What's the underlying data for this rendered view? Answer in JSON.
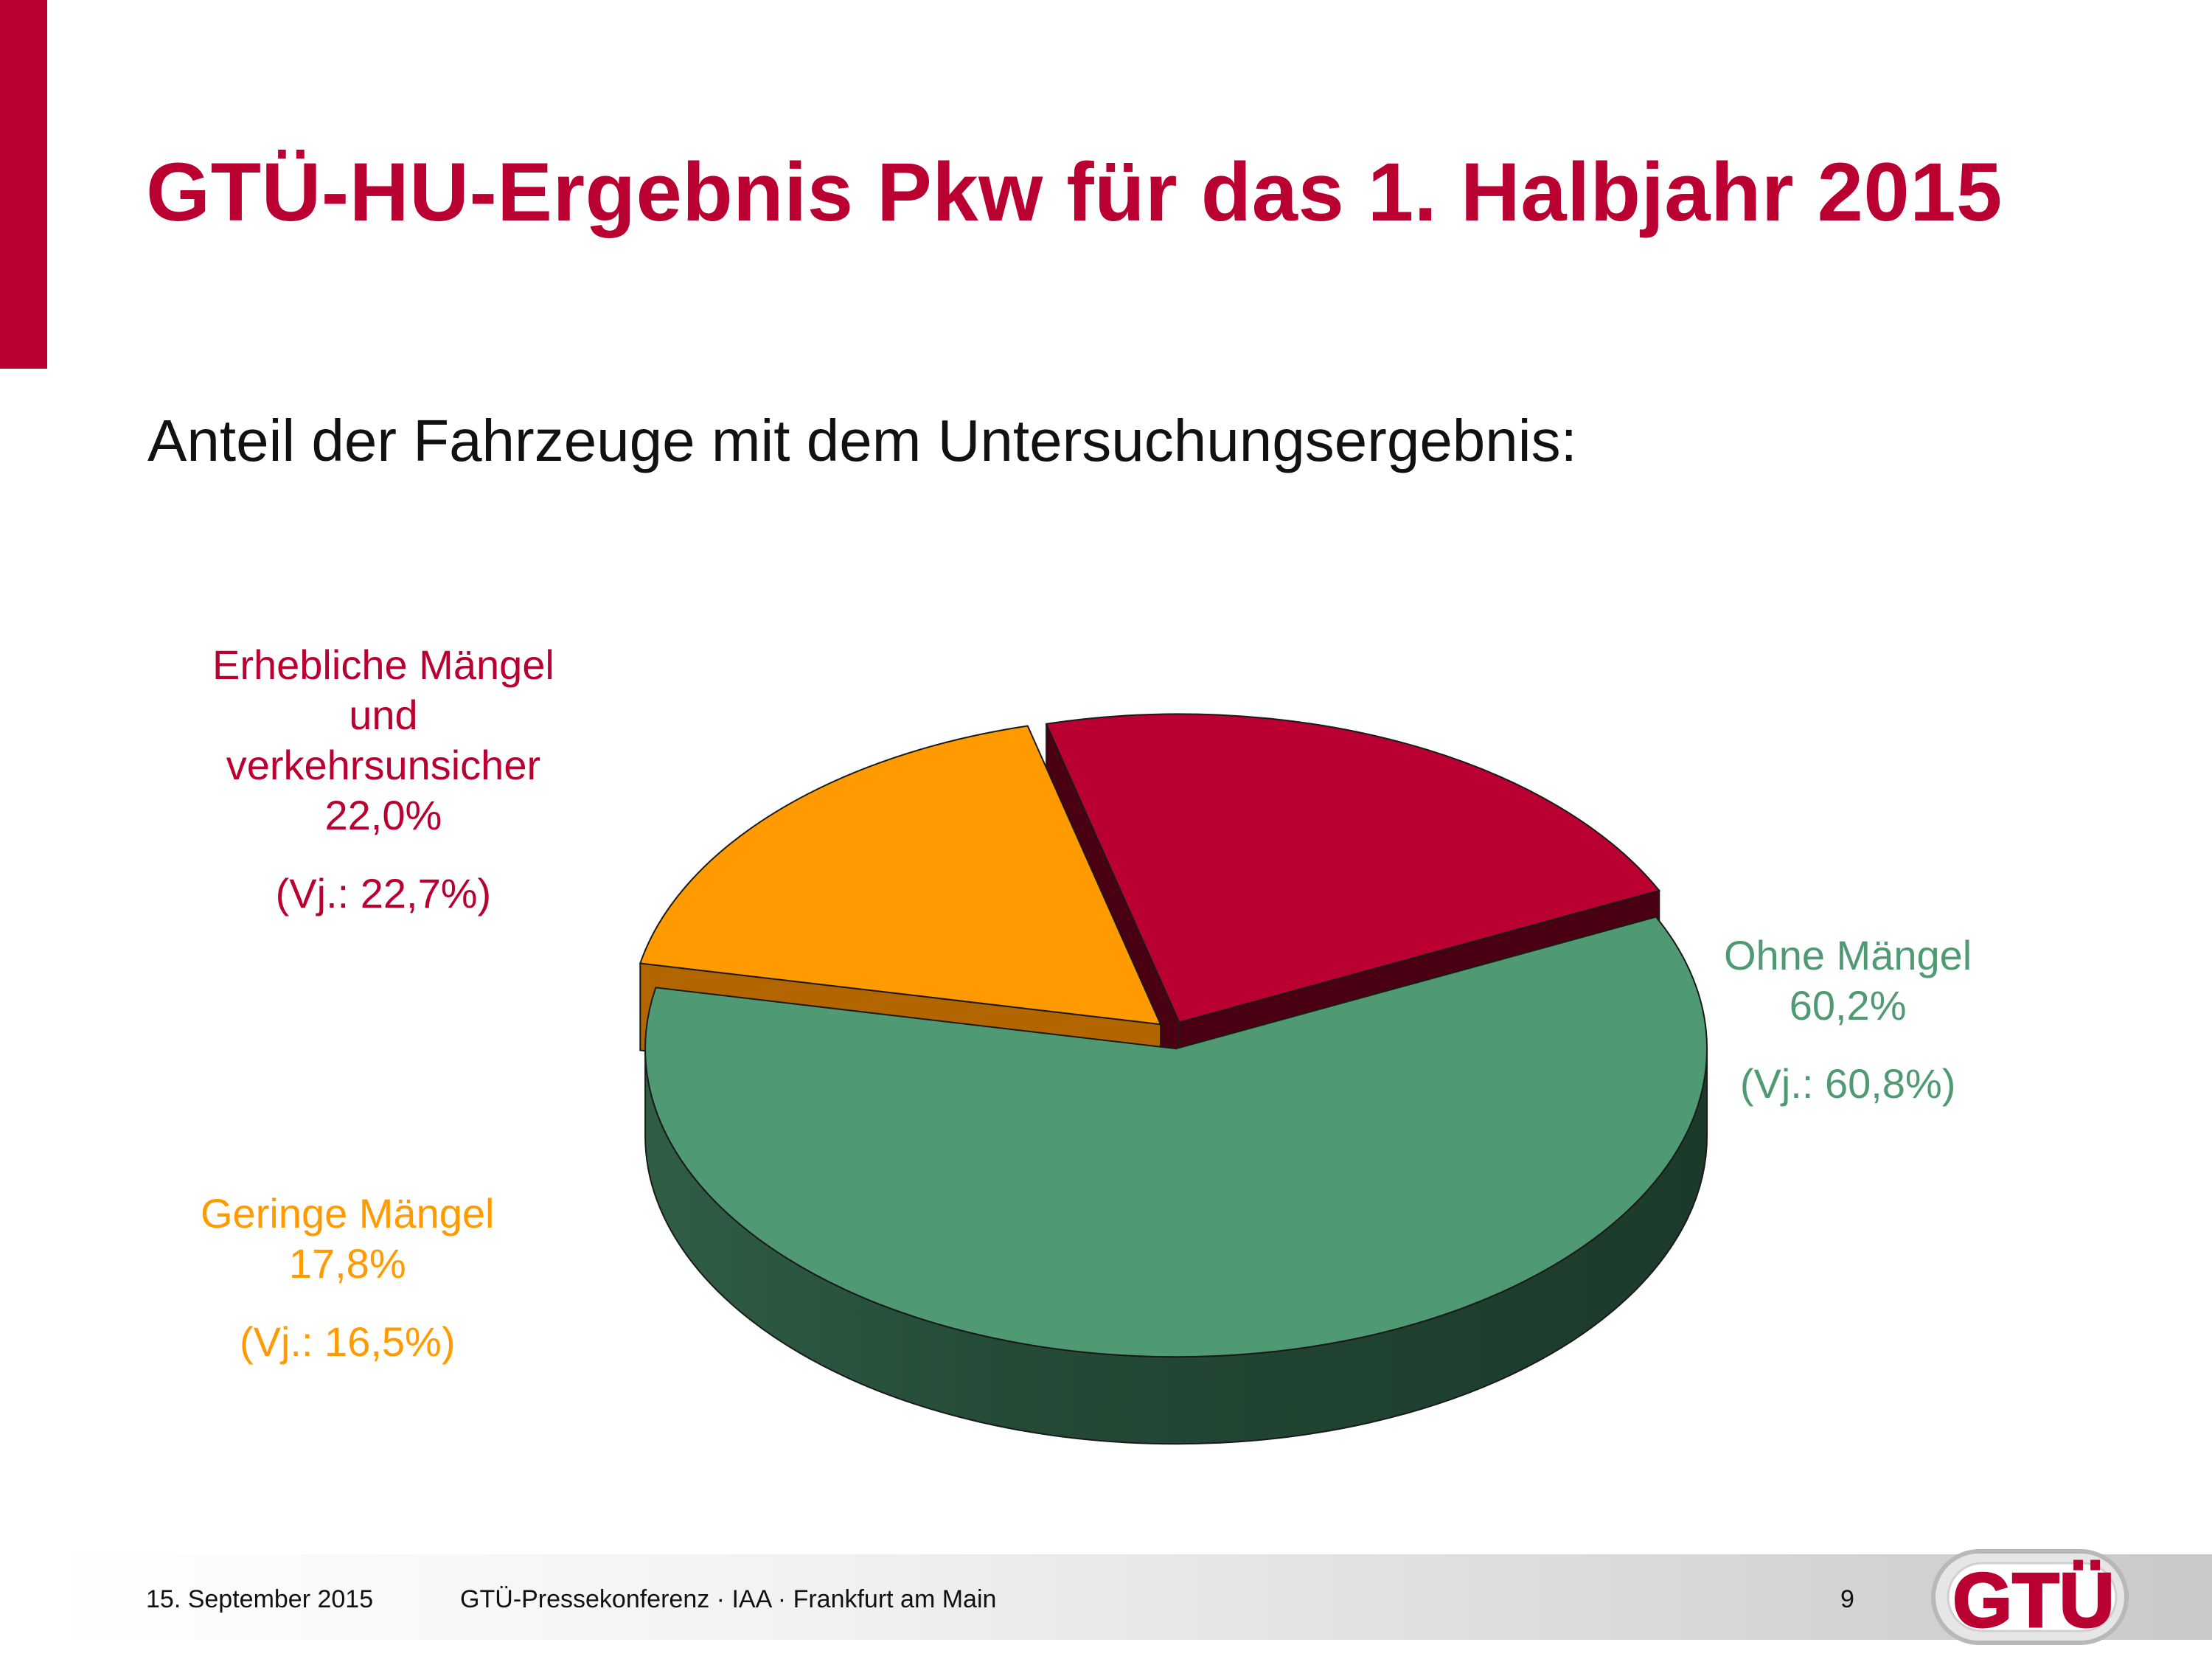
{
  "header": {
    "title": "GTÜ-HU-Ergebnis Pkw für das 1. Halbjahr 2015",
    "subtitle": "Anteil der Fahrzeuge mit dem Untersuchungsergebnis:"
  },
  "chart_data": {
    "type": "pie",
    "title": "",
    "slices": [
      {
        "name_lines": [
          "Erhebliche Mängel",
          "und",
          "verkehrsunsicher"
        ],
        "value": 22.0,
        "value_label": "22,0%",
        "previous_label": "(Vj.: 22,7%)",
        "color": "#ba0031"
      },
      {
        "name_lines": [
          "Ohne Mängel"
        ],
        "value": 60.2,
        "value_label": "60,2%",
        "previous_label": "(Vj.: 60,8%)",
        "color": "#4f9a72"
      },
      {
        "name_lines": [
          "Geringe Mängel"
        ],
        "value": 17.8,
        "value_label": "17,8%",
        "previous_label": "(Vj.: 16,5%)",
        "color": "#ff9a00"
      }
    ]
  },
  "footer": {
    "date": "15. September 2015",
    "event": "GTÜ-Pressekonferenz · IAA · Frankfurt am Main",
    "page_number": "9"
  },
  "logo": {
    "text": "GTÜ",
    "color": "#ba0031"
  }
}
